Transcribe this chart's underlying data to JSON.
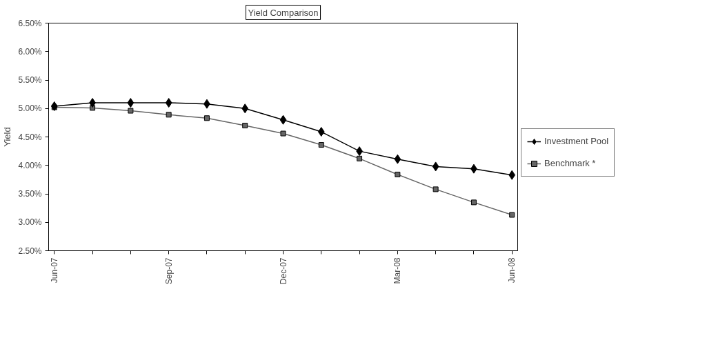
{
  "chart_data": {
    "type": "line",
    "title": "Yield Comparison",
    "ylabel": "Yield",
    "categories": [
      "Jun-07",
      null,
      null,
      "Sep-07",
      null,
      null,
      "Dec-07",
      null,
      null,
      "Mar-08",
      null,
      null,
      "Jun-08"
    ],
    "series": [
      {
        "name": "Investment Pool",
        "color": "#000000",
        "marker": "diamond",
        "values": [
          5.04,
          5.1,
          5.1,
          5.1,
          5.08,
          5.0,
          4.8,
          4.59,
          4.25,
          4.11,
          3.98,
          3.94,
          3.83
        ]
      },
      {
        "name": "Benchmark *",
        "color": "#666666",
        "marker": "square",
        "values": [
          5.02,
          5.01,
          4.96,
          4.89,
          4.83,
          4.7,
          4.56,
          4.36,
          4.12,
          3.84,
          3.58,
          3.35,
          3.13
        ]
      }
    ],
    "ylim": [
      2.5,
      6.5
    ],
    "yticks": [
      {
        "value": 2.5,
        "label": "2.50%"
      },
      {
        "value": 3.0,
        "label": "3.00%"
      },
      {
        "value": 3.5,
        "label": "3.50%"
      },
      {
        "value": 4.0,
        "label": "4.00%"
      },
      {
        "value": 4.5,
        "label": "4.50%"
      },
      {
        "value": 5.0,
        "label": "5.00%"
      },
      {
        "value": 5.5,
        "label": "5.50%"
      },
      {
        "value": 6.0,
        "label": "6.00%"
      },
      {
        "value": 6.5,
        "label": "6.50%"
      }
    ],
    "legend": "right",
    "grid": false,
    "line_style": "solid"
  }
}
